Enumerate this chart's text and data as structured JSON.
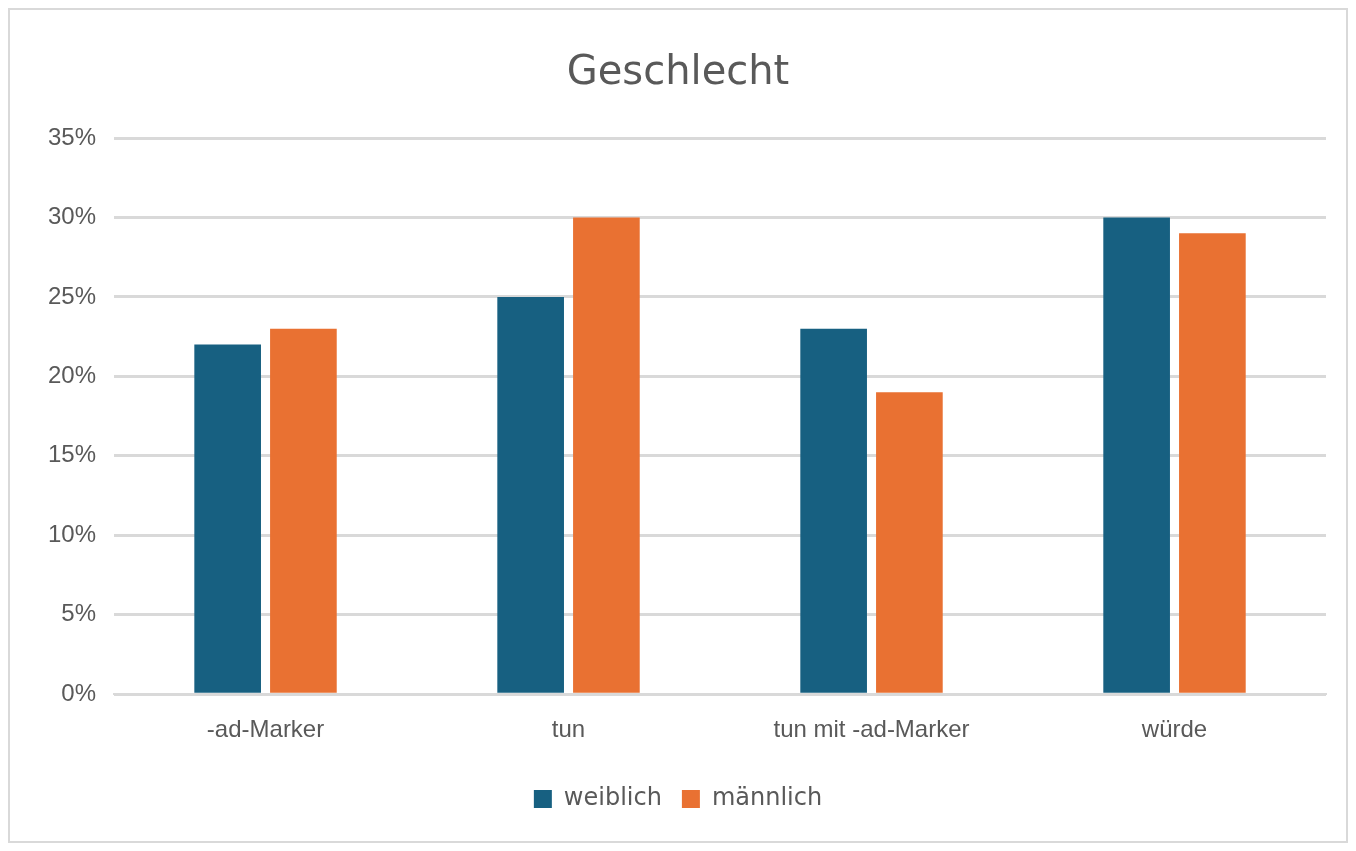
{
  "chart_data": {
    "type": "bar",
    "title": "Geschlecht",
    "categories": [
      "-ad-Marker",
      "tun",
      "tun mit -ad-Marker",
      "würde"
    ],
    "series": [
      {
        "name": "weiblich",
        "color": "#176081",
        "values": [
          22,
          25,
          23,
          30
        ]
      },
      {
        "name": "männlich",
        "color": "#e97132",
        "values": [
          23,
          30,
          19,
          29
        ]
      }
    ],
    "ylim": [
      0,
      35
    ],
    "yticks": [
      {
        "value": 0,
        "label": "0%"
      },
      {
        "value": 5,
        "label": "5%"
      },
      {
        "value": 10,
        "label": "10%"
      },
      {
        "value": 15,
        "label": "15%"
      },
      {
        "value": 20,
        "label": "20%"
      },
      {
        "value": 25,
        "label": "25%"
      },
      {
        "value": 30,
        "label": "30%"
      },
      {
        "value": 35,
        "label": "35%"
      }
    ],
    "grid": "y",
    "legend": "bottom"
  }
}
